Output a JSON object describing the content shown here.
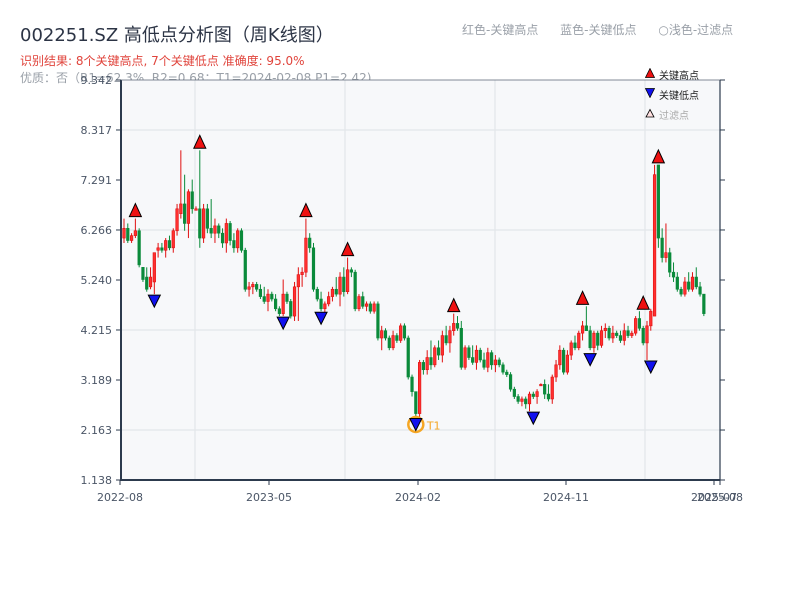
{
  "header": {
    "title": "002251.SZ 高低点分析图（周K线图）",
    "result": "识别结果: 8个关键高点, 7个关键低点  准确度: 95.0%",
    "quality": "优质：否（R1=62.3%, R2=0.68；T1=2024-02-08 P1=2.42)",
    "legend_notes": [
      "红色-关键高点",
      "蓝色-关键低点",
      "○浅色-过滤点"
    ]
  },
  "legend": {
    "items": [
      {
        "label": "关键高点",
        "marker": "triangle-up",
        "color": "#ee1111"
      },
      {
        "label": "关键低点",
        "marker": "triangle-down",
        "color": "#1111ee"
      },
      {
        "label": "过滤点",
        "marker": "triangle-up-outline",
        "color": "#ffcccc"
      }
    ]
  },
  "colors": {
    "up": "#e01010",
    "down": "#0a8a3a",
    "high_marker": "#ee1111",
    "low_marker": "#1111ee",
    "t1_ring": "#f5a623",
    "grid": "#e3e6ea",
    "plot_bg": "#f7f8fa",
    "axis": "#2c3a4d"
  },
  "chart_data": {
    "type": "candlestick",
    "title": "002251.SZ 高低点分析图（周K线图）",
    "xlabel": "",
    "ylabel": "",
    "ylim": [
      1.138,
      9.342
    ],
    "y_ticks": [
      "1.138",
      "2.163",
      "3.189",
      "4.215",
      "5.240",
      "6.266",
      "7.291",
      "8.317",
      "9.342"
    ],
    "x_ticks": [
      "2022-08",
      "2023-05",
      "2024-02",
      "2024-11",
      "2025-07",
      "2025-08"
    ],
    "x_tick_index": [
      0,
      39,
      78,
      117,
      155,
      157
    ],
    "grid": true,
    "n_weeks": 158,
    "candles": [
      [
        6.1,
        6.5,
        6.0,
        6.3
      ],
      [
        6.3,
        6.4,
        6.0,
        6.05
      ],
      [
        6.05,
        6.2,
        6.0,
        6.15
      ],
      [
        6.15,
        6.5,
        6.1,
        6.25
      ],
      [
        6.25,
        6.3,
        5.5,
        5.55
      ],
      [
        5.5,
        5.5,
        5.2,
        5.25
      ],
      [
        5.3,
        5.5,
        5.0,
        5.05
      ],
      [
        5.1,
        5.5,
        5.05,
        5.3
      ],
      [
        5.2,
        5.8,
        4.95,
        5.8
      ],
      [
        5.85,
        6.0,
        5.7,
        5.9
      ],
      [
        5.9,
        6.0,
        5.8,
        5.85
      ],
      [
        5.85,
        6.1,
        5.7,
        6.05
      ],
      [
        6.05,
        6.15,
        5.85,
        5.9
      ],
      [
        5.9,
        6.3,
        5.8,
        6.25
      ],
      [
        6.25,
        6.8,
        6.15,
        6.7
      ],
      [
        6.6,
        7.9,
        6.5,
        6.8
      ],
      [
        6.8,
        7.4,
        6.25,
        6.4
      ],
      [
        6.4,
        7.1,
        6.1,
        7.05
      ],
      [
        7.05,
        7.3,
        6.6,
        6.7
      ],
      [
        6.7,
        6.75,
        6.7,
        6.7
      ],
      [
        6.7,
        7.9,
        5.9,
        6.1
      ],
      [
        6.1,
        6.8,
        6.0,
        6.7
      ],
      [
        6.7,
        6.8,
        6.2,
        6.3
      ],
      [
        6.3,
        6.9,
        6.1,
        6.2
      ],
      [
        6.2,
        6.5,
        6.0,
        6.35
      ],
      [
        6.35,
        6.4,
        6.1,
        6.2
      ],
      [
        6.2,
        6.3,
        5.9,
        6.0
      ],
      [
        6.0,
        6.5,
        5.8,
        6.4
      ],
      [
        6.4,
        6.45,
        5.95,
        6.05
      ],
      [
        6.05,
        6.2,
        5.8,
        5.9
      ],
      [
        5.9,
        6.3,
        5.8,
        6.25
      ],
      [
        6.25,
        6.3,
        5.8,
        5.85
      ],
      [
        5.85,
        5.9,
        5.0,
        5.05
      ],
      [
        5.05,
        5.2,
        4.9,
        5.1
      ],
      [
        5.1,
        5.2,
        4.95,
        5.15
      ],
      [
        5.15,
        5.2,
        5.0,
        5.05
      ],
      [
        5.05,
        5.15,
        4.85,
        4.9
      ],
      [
        4.9,
        5.1,
        4.75,
        4.8
      ],
      [
        4.8,
        5.05,
        4.6,
        4.95
      ],
      [
        4.95,
        5.0,
        4.8,
        4.85
      ],
      [
        4.85,
        4.95,
        4.6,
        4.65
      ],
      [
        4.65,
        4.7,
        4.5,
        4.55
      ],
      [
        4.55,
        5.25,
        4.5,
        4.95
      ],
      [
        4.95,
        5.0,
        4.75,
        4.8
      ],
      [
        4.8,
        4.85,
        4.45,
        4.5
      ],
      [
        4.5,
        5.2,
        4.4,
        5.1
      ],
      [
        5.1,
        5.5,
        4.4,
        5.35
      ],
      [
        5.35,
        5.5,
        5.1,
        5.4
      ],
      [
        5.4,
        6.5,
        5.3,
        6.1
      ],
      [
        6.1,
        6.2,
        5.8,
        5.9
      ],
      [
        5.9,
        6.0,
        5.0,
        5.05
      ],
      [
        5.05,
        5.1,
        4.8,
        4.85
      ],
      [
        4.85,
        5.0,
        4.6,
        4.65
      ],
      [
        4.65,
        4.8,
        4.55,
        4.75
      ],
      [
        4.75,
        5.0,
        4.7,
        4.9
      ],
      [
        4.9,
        5.1,
        4.8,
        5.05
      ],
      [
        5.05,
        5.3,
        4.9,
        4.95
      ],
      [
        4.95,
        5.4,
        4.7,
        5.3
      ],
      [
        5.3,
        5.5,
        4.9,
        5.0
      ],
      [
        5.0,
        5.7,
        4.95,
        5.45
      ],
      [
        5.45,
        5.5,
        5.3,
        5.4
      ],
      [
        5.4,
        5.45,
        4.6,
        4.65
      ],
      [
        4.65,
        4.95,
        4.6,
        4.9
      ],
      [
        4.9,
        5.0,
        4.65,
        4.7
      ],
      [
        4.7,
        4.8,
        4.6,
        4.75
      ],
      [
        4.75,
        4.8,
        4.55,
        4.6
      ],
      [
        4.6,
        4.8,
        4.55,
        4.75
      ],
      [
        4.75,
        4.8,
        4.0,
        4.05
      ],
      [
        4.05,
        4.3,
        3.8,
        4.2
      ],
      [
        4.2,
        4.25,
        4.0,
        4.05
      ],
      [
        4.05,
        4.1,
        3.8,
        3.85
      ],
      [
        3.85,
        4.2,
        3.8,
        4.1
      ],
      [
        4.1,
        4.15,
        3.95,
        4.0
      ],
      [
        4.0,
        4.35,
        3.95,
        4.3
      ],
      [
        4.3,
        4.35,
        4.0,
        4.05
      ],
      [
        4.05,
        4.1,
        3.2,
        3.25
      ],
      [
        3.25,
        3.3,
        2.85,
        2.95
      ],
      [
        2.95,
        2.95,
        2.42,
        2.5
      ],
      [
        2.5,
        3.6,
        2.42,
        3.55
      ],
      [
        3.55,
        3.6,
        3.3,
        3.4
      ],
      [
        3.4,
        3.8,
        3.3,
        3.65
      ],
      [
        3.65,
        4.0,
        3.4,
        3.5
      ],
      [
        3.5,
        3.9,
        3.45,
        3.85
      ],
      [
        3.85,
        4.0,
        3.6,
        3.7
      ],
      [
        3.7,
        4.2,
        3.55,
        4.1
      ],
      [
        4.1,
        4.3,
        3.9,
        3.95
      ],
      [
        3.95,
        4.3,
        3.75,
        4.2
      ],
      [
        4.2,
        4.55,
        4.1,
        4.35
      ],
      [
        4.35,
        4.5,
        4.2,
        4.25
      ],
      [
        4.25,
        4.4,
        3.4,
        3.45
      ],
      [
        3.45,
        3.9,
        3.4,
        3.85
      ],
      [
        3.85,
        3.9,
        3.6,
        3.65
      ],
      [
        3.65,
        3.9,
        3.5,
        3.55
      ],
      [
        3.55,
        3.9,
        3.4,
        3.8
      ],
      [
        3.8,
        3.85,
        3.55,
        3.6
      ],
      [
        3.6,
        3.75,
        3.4,
        3.45
      ],
      [
        3.45,
        3.85,
        3.35,
        3.75
      ],
      [
        3.75,
        3.8,
        3.4,
        3.5
      ],
      [
        3.5,
        3.7,
        3.35,
        3.6
      ],
      [
        3.6,
        3.65,
        3.45,
        3.5
      ],
      [
        3.5,
        3.55,
        3.3,
        3.35
      ],
      [
        3.35,
        3.4,
        3.25,
        3.3
      ],
      [
        3.3,
        3.35,
        2.95,
        3.0
      ],
      [
        3.0,
        3.05,
        2.8,
        2.85
      ],
      [
        2.85,
        2.9,
        2.7,
        2.75
      ],
      [
        2.75,
        2.85,
        2.65,
        2.8
      ],
      [
        2.8,
        2.85,
        2.6,
        2.7
      ],
      [
        2.7,
        2.95,
        2.55,
        2.9
      ],
      [
        2.9,
        2.95,
        2.8,
        2.85
      ],
      [
        2.85,
        3.0,
        2.7,
        2.95
      ],
      [
        3.1,
        3.12,
        3.08,
        3.1
      ],
      [
        3.1,
        3.2,
        2.8,
        2.9
      ],
      [
        2.9,
        3.1,
        2.75,
        2.8
      ],
      [
        2.8,
        3.3,
        2.7,
        3.25
      ],
      [
        3.25,
        3.6,
        3.15,
        3.5
      ],
      [
        3.5,
        3.9,
        3.4,
        3.8
      ],
      [
        3.8,
        3.85,
        3.3,
        3.35
      ],
      [
        3.35,
        3.8,
        3.3,
        3.7
      ],
      [
        3.7,
        4.0,
        3.6,
        3.95
      ],
      [
        3.95,
        4.1,
        3.8,
        3.85
      ],
      [
        3.85,
        4.2,
        3.8,
        4.15
      ],
      [
        4.15,
        4.4,
        4.0,
        4.3
      ],
      [
        4.3,
        4.7,
        4.2,
        4.2
      ],
      [
        4.2,
        4.3,
        3.8,
        3.85
      ],
      [
        3.85,
        4.2,
        3.75,
        4.15
      ],
      [
        4.15,
        4.2,
        3.8,
        3.9
      ],
      [
        3.9,
        4.3,
        3.85,
        4.2
      ],
      [
        4.2,
        4.35,
        4.05,
        4.25
      ],
      [
        4.25,
        4.3,
        4.0,
        4.05
      ],
      [
        4.05,
        4.3,
        3.95,
        4.15
      ],
      [
        4.15,
        4.2,
        4.05,
        4.1
      ],
      [
        4.1,
        4.2,
        3.95,
        4.0
      ],
      [
        4.0,
        4.35,
        3.9,
        4.2
      ],
      [
        4.2,
        4.3,
        4.05,
        4.1
      ],
      [
        4.1,
        4.2,
        4.05,
        4.15
      ],
      [
        4.15,
        4.5,
        4.1,
        4.45
      ],
      [
        4.45,
        4.6,
        4.2,
        4.25
      ],
      [
        4.25,
        4.3,
        3.9,
        3.95
      ],
      [
        3.95,
        4.4,
        3.6,
        4.3
      ],
      [
        4.3,
        4.65,
        4.2,
        4.6
      ],
      [
        4.5,
        7.6,
        4.8,
        7.4
      ],
      [
        7.6,
        7.6,
        5.9,
        6.1
      ],
      [
        6.1,
        6.3,
        5.6,
        5.7
      ],
      [
        5.7,
        6.4,
        5.6,
        5.8
      ],
      [
        5.8,
        5.9,
        5.3,
        5.4
      ],
      [
        5.4,
        5.6,
        5.2,
        5.3
      ],
      [
        5.3,
        5.4,
        5.0,
        5.05
      ],
      [
        5.05,
        5.1,
        4.9,
        4.95
      ],
      [
        4.95,
        5.3,
        4.9,
        5.2
      ],
      [
        5.2,
        5.4,
        5.0,
        5.05
      ],
      [
        5.05,
        5.4,
        5.0,
        5.3
      ],
      [
        5.3,
        5.5,
        5.05,
        5.1
      ],
      [
        5.1,
        5.2,
        4.9,
        4.95
      ],
      [
        4.95,
        4.95,
        4.5,
        4.55
      ]
    ],
    "key_highs": [
      {
        "idx": 3,
        "price": 6.5
      },
      {
        "idx": 20,
        "price": 7.9
      },
      {
        "idx": 48,
        "price": 6.5
      },
      {
        "idx": 59,
        "price": 5.7
      },
      {
        "idx": 87,
        "price": 4.55
      },
      {
        "idx": 121,
        "price": 4.7
      },
      {
        "idx": 137,
        "price": 4.6
      },
      {
        "idx": 141,
        "price": 7.6
      }
    ],
    "key_lows": [
      {
        "idx": 8,
        "price": 4.95
      },
      {
        "idx": 42,
        "price": 4.5
      },
      {
        "idx": 52,
        "price": 4.6
      },
      {
        "idx": 77,
        "price": 2.42,
        "label": "T1"
      },
      {
        "idx": 108,
        "price": 2.55
      },
      {
        "idx": 123,
        "price": 3.75
      },
      {
        "idx": 139,
        "price": 3.6
      }
    ],
    "annotations": [
      {
        "text": "T1",
        "date": "2024-02-08",
        "price": 2.42
      }
    ]
  }
}
